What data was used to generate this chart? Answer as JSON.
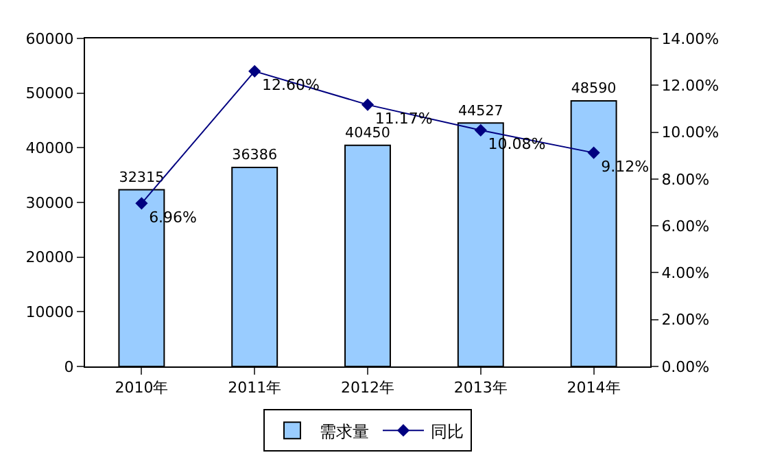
{
  "chart_data": {
    "type": "bar",
    "categories": [
      "2010年",
      "2011年",
      "2012年",
      "2013年",
      "2014年"
    ],
    "series": [
      {
        "name": "需求量",
        "color": "#99ccff",
        "values": [
          32315,
          36386,
          40450,
          44527,
          48590
        ],
        "value_labels": [
          "32315",
          "36386",
          "40450",
          "44527",
          "48590"
        ]
      },
      {
        "name": "同比",
        "type": "line",
        "axis": "y2",
        "color": "#000080",
        "marker": "diamond",
        "values": [
          6.96,
          12.6,
          11.17,
          10.08,
          9.12
        ],
        "value_labels": [
          "6.96%",
          "12.60%",
          "11.17%",
          "10.08%",
          "9.12%"
        ]
      }
    ],
    "ylim": [
      0,
      60000
    ],
    "yticks": [
      0,
      10000,
      20000,
      30000,
      40000,
      50000,
      60000
    ],
    "y2lim": [
      0,
      14
    ],
    "y2ticks": [
      {
        "value": 0,
        "label": "0.00%"
      },
      {
        "value": 2,
        "label": "2.00%"
      },
      {
        "value": 4,
        "label": "4.00%"
      },
      {
        "value": 6,
        "label": "6.00%"
      },
      {
        "value": 8,
        "label": "8.00%"
      },
      {
        "value": 10,
        "label": "10.00%"
      },
      {
        "value": 12,
        "label": "12.00%"
      },
      {
        "value": 14,
        "label": "14.00%"
      }
    ],
    "grid": false,
    "legend": "bottom"
  }
}
